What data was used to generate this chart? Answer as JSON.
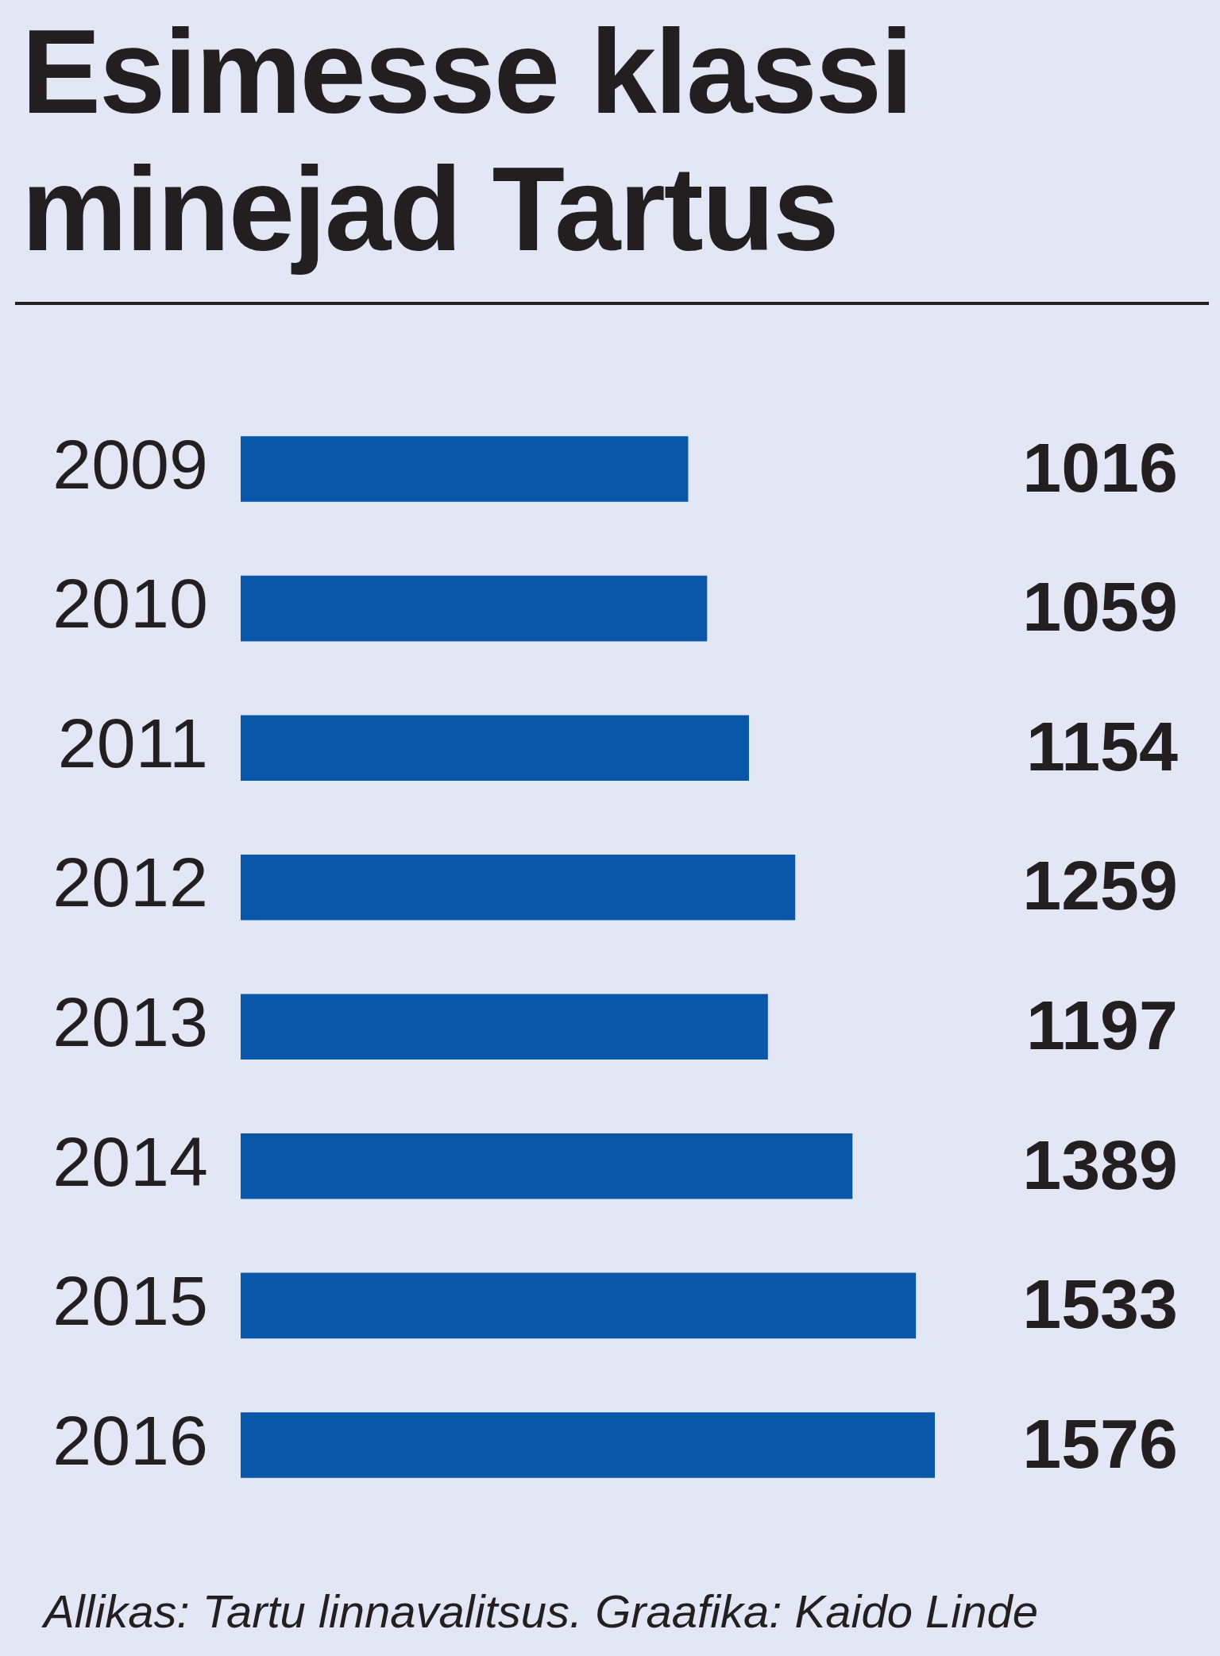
{
  "chart_data": {
    "type": "bar",
    "orientation": "horizontal",
    "title": "Esimesse klassi minejad Tartus",
    "categories": [
      "2009",
      "2010",
      "2011",
      "2012",
      "2013",
      "2014",
      "2015",
      "2016"
    ],
    "values": [
      1016,
      1059,
      1154,
      1259,
      1197,
      1389,
      1533,
      1576
    ],
    "color": "#0a56a8",
    "data_labels": true,
    "grid": false,
    "legend": false,
    "annotations": [
      "Allikas: Tartu linnavalitsus. Graafika: Kaido Linde"
    ]
  }
}
